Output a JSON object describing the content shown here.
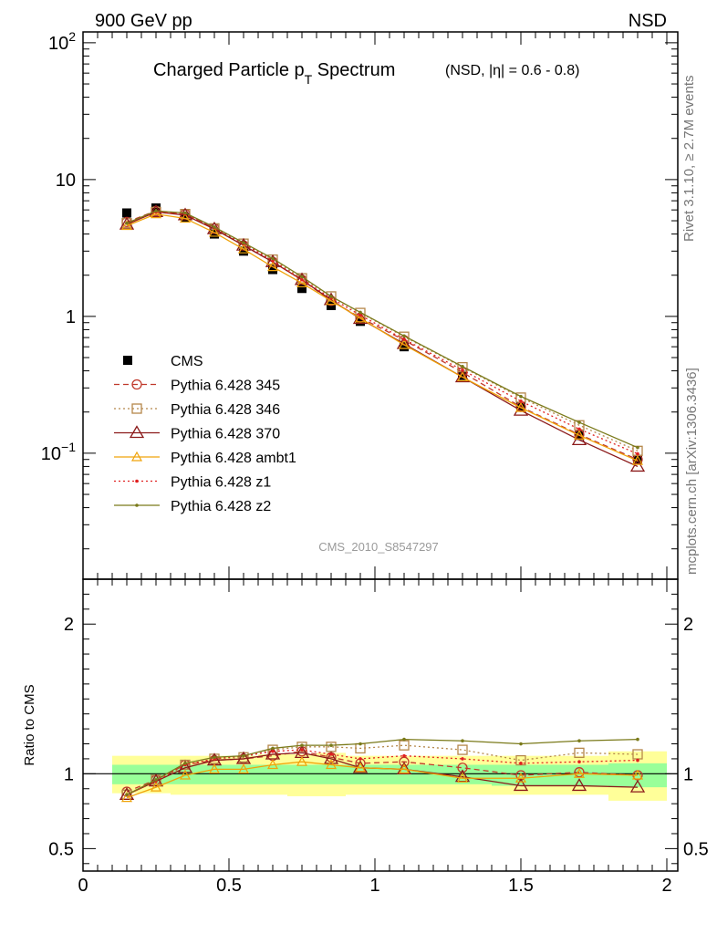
{
  "header": {
    "left": "900 GeV pp",
    "right": "NSD"
  },
  "title": {
    "main_prefix": "Charged Particle p",
    "main_sub": "T",
    "main_suffix": " Spectrum",
    "qualifier": "(NSD, |η| = 0.6 - 0.8)"
  },
  "side_labels": {
    "rivet": "Rivet 3.1.10, ≥ 2.7M events",
    "mcplots": "mcplots.cern.ch [arXiv:1306.3436]"
  },
  "watermark": "CMS_2010_S8547297",
  "ratio_ylabel": "Ratio to CMS",
  "chart_data": [
    {
      "type": "scatter",
      "panel": "main",
      "yscale": "log",
      "xlim": [
        0,
        2
      ],
      "ylim": [
        0.012,
        120
      ],
      "legend_position": "middle-left",
      "x_ticks": [
        0,
        0.5,
        1,
        1.5,
        2
      ],
      "y_tick_labels": [
        {
          "value": 100,
          "base": "10",
          "exp": "2"
        },
        {
          "value": 10,
          "base": "10",
          "exp": ""
        },
        {
          "value": 1,
          "base": "1",
          "exp": ""
        },
        {
          "value": 0.1,
          "base": "10",
          "exp": "−1"
        }
      ],
      "x": [
        0.15,
        0.25,
        0.35,
        0.45,
        0.55,
        0.65,
        0.75,
        0.85,
        0.95,
        1.1,
        1.3,
        1.5,
        1.7,
        1.9
      ],
      "series": [
        {
          "name": "CMS",
          "color": "#000000",
          "marker": "filled-square",
          "values": [
            5.7,
            6.2,
            5.3,
            4.0,
            3.0,
            2.2,
            1.6,
            1.2,
            0.92,
            0.6,
            0.37,
            0.22,
            0.135,
            0.09
          ]
        },
        {
          "name": "Pythia 6.428 345",
          "color": "#c0392b",
          "dash": "dashed",
          "marker": "open-circle",
          "values": [
            4.9,
            5.9,
            5.6,
            4.4,
            3.3,
            2.5,
            1.85,
            1.3,
            0.98,
            0.67,
            0.39,
            0.218,
            0.137,
            0.09
          ]
        },
        {
          "name": "Pythia 6.428 346",
          "color": "#b5874a",
          "dash": "dotted",
          "marker": "open-square",
          "values": [
            4.8,
            5.8,
            5.6,
            4.4,
            3.4,
            2.6,
            1.9,
            1.4,
            1.06,
            0.71,
            0.425,
            0.255,
            0.16,
            0.104
          ]
        },
        {
          "name": "Pythia 6.428 370",
          "color": "#8b1a1a",
          "dash": "solid",
          "marker": "open-triangle",
          "values": [
            4.7,
            5.8,
            5.5,
            4.35,
            3.3,
            2.5,
            1.85,
            1.32,
            0.96,
            0.63,
            0.36,
            0.205,
            0.125,
            0.08
          ]
        },
        {
          "name": "Pythia 6.428 ambt1",
          "color": "#f0a30a",
          "dash": "solid",
          "marker": "small-open-triangle",
          "values": [
            4.6,
            5.6,
            5.2,
            4.1,
            3.1,
            2.3,
            1.75,
            1.3,
            0.97,
            0.62,
            0.36,
            0.215,
            0.135,
            0.088
          ]
        },
        {
          "name": "Pythia 6.428 z1",
          "color": "#e02020",
          "dash": "dotted",
          "marker": "dot",
          "values": [
            4.8,
            5.8,
            5.6,
            4.45,
            3.4,
            2.55,
            1.85,
            1.36,
            1.02,
            0.68,
            0.405,
            0.24,
            0.15,
            0.099
          ]
        },
        {
          "name": "Pythia 6.428 z2",
          "color": "#7a7a1a",
          "dash": "solid",
          "marker": "dot",
          "values": [
            4.8,
            5.9,
            5.7,
            4.5,
            3.45,
            2.65,
            1.95,
            1.4,
            1.07,
            0.72,
            0.43,
            0.26,
            0.168,
            0.11
          ]
        }
      ]
    },
    {
      "type": "line",
      "panel": "ratio",
      "xlim": [
        0,
        2
      ],
      "ylim": [
        0.35,
        2.3
      ],
      "ylabel": "Ratio to CMS",
      "y_ticks": [
        0.5,
        1,
        2
      ],
      "y_tick_labels": [
        "0.5",
        "1",
        "2"
      ],
      "x_ticks": [
        0,
        0.5,
        1,
        1.5,
        2
      ],
      "x_tick_labels": [
        "0",
        "0.5",
        "1",
        "1.5",
        "2"
      ],
      "x": [
        0.15,
        0.25,
        0.35,
        0.45,
        0.55,
        0.65,
        0.75,
        0.85,
        0.95,
        1.1,
        1.3,
        1.5,
        1.7,
        1.9
      ],
      "bands": {
        "bin_edges": [
          0.1,
          0.2,
          0.3,
          0.4,
          0.5,
          0.6,
          0.7,
          0.8,
          0.9,
          1.0,
          1.2,
          1.4,
          1.6,
          1.8,
          2.0
        ],
        "outer_color": "#ffff99",
        "inner_color": "#99ff99",
        "outer": [
          [
            0.87,
            1.12
          ],
          [
            0.87,
            1.12
          ],
          [
            0.86,
            1.12
          ],
          [
            0.86,
            1.12
          ],
          [
            0.86,
            1.12
          ],
          [
            0.86,
            1.13
          ],
          [
            0.85,
            1.13
          ],
          [
            0.85,
            1.14
          ],
          [
            0.86,
            1.12
          ],
          [
            0.86,
            1.12
          ],
          [
            0.86,
            1.12
          ],
          [
            0.86,
            1.12
          ],
          [
            0.86,
            1.12
          ],
          [
            0.82,
            1.15
          ]
        ],
        "inner": [
          [
            0.93,
            1.06
          ],
          [
            0.93,
            1.06
          ],
          [
            0.93,
            1.06
          ],
          [
            0.93,
            1.06
          ],
          [
            0.93,
            1.06
          ],
          [
            0.93,
            1.06
          ],
          [
            0.93,
            1.06
          ],
          [
            0.93,
            1.06
          ],
          [
            0.93,
            1.06
          ],
          [
            0.93,
            1.06
          ],
          [
            0.93,
            1.06
          ],
          [
            0.92,
            1.06
          ],
          [
            0.92,
            1.06
          ],
          [
            0.91,
            1.07
          ]
        ]
      },
      "series": [
        {
          "name": "Pythia 6.428 345",
          "color": "#c0392b",
          "dash": "dashed",
          "marker": "open-circle",
          "values": [
            0.88,
            0.96,
            1.06,
            1.09,
            1.1,
            1.12,
            1.15,
            1.11,
            1.07,
            1.08,
            1.04,
            0.99,
            1.01,
            0.99
          ]
        },
        {
          "name": "Pythia 6.428 346",
          "color": "#b5874a",
          "dash": "dotted",
          "marker": "open-square",
          "values": [
            0.86,
            0.96,
            1.06,
            1.1,
            1.11,
            1.16,
            1.18,
            1.18,
            1.17,
            1.19,
            1.16,
            1.09,
            1.14,
            1.13
          ]
        },
        {
          "name": "Pythia 6.428 370",
          "color": "#8b1a1a",
          "dash": "solid",
          "marker": "open-triangle",
          "values": [
            0.86,
            0.95,
            1.04,
            1.09,
            1.1,
            1.13,
            1.14,
            1.1,
            1.04,
            1.03,
            0.98,
            0.92,
            0.92,
            0.91
          ]
        },
        {
          "name": "Pythia 6.428 ambt1",
          "color": "#f0a30a",
          "dash": "solid",
          "marker": "small-open-triangle",
          "values": [
            0.84,
            0.91,
            0.99,
            1.03,
            1.03,
            1.06,
            1.08,
            1.06,
            1.04,
            1.03,
            0.97,
            0.97,
            1.0,
            0.99
          ]
        },
        {
          "name": "Pythia 6.428 z1",
          "color": "#e02020",
          "dash": "dotted",
          "marker": "dot",
          "values": [
            0.86,
            0.95,
            1.06,
            1.1,
            1.12,
            1.15,
            1.16,
            1.13,
            1.1,
            1.12,
            1.1,
            1.07,
            1.08,
            1.09
          ]
        },
        {
          "name": "Pythia 6.428 z2",
          "color": "#7a7a1a",
          "dash": "solid",
          "marker": "dot",
          "values": [
            0.86,
            0.96,
            1.07,
            1.11,
            1.12,
            1.17,
            1.19,
            1.19,
            1.2,
            1.23,
            1.22,
            1.2,
            1.22,
            1.23
          ]
        }
      ]
    }
  ]
}
